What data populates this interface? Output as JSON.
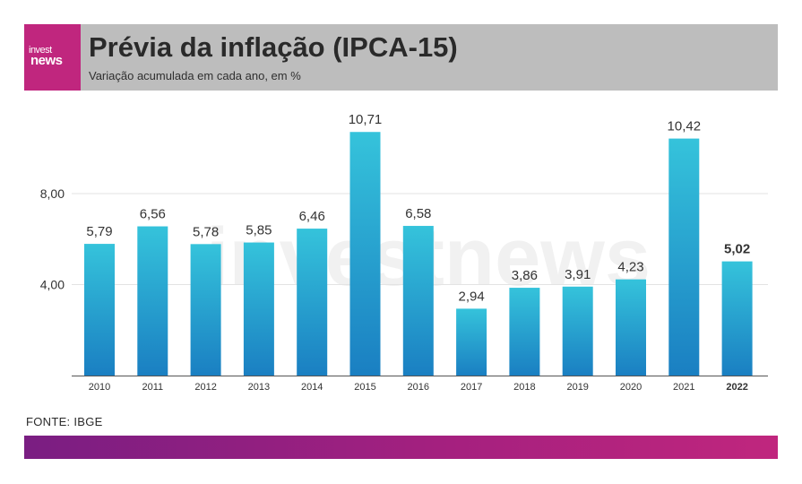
{
  "header": {
    "logo_line1": "invest",
    "logo_line2": "news",
    "title": "Prévia da inflação (IPCA-15)",
    "subtitle": "Variação acumulada em cada ano, em %"
  },
  "watermark": "investnews",
  "source": "FONTE: IBGE",
  "colors": {
    "header_bg": "#bdbdbd",
    "brand": "#c0267e",
    "bar_top": "#35c3db",
    "bar_bottom": "#1a7fc2",
    "gradient_start": "#7a1e82"
  },
  "chart_data": {
    "type": "bar",
    "categories": [
      "2010",
      "2011",
      "2012",
      "2013",
      "2014",
      "2015",
      "2016",
      "2017",
      "2018",
      "2019",
      "2020",
      "2021",
      "2022"
    ],
    "values": [
      5.79,
      6.56,
      5.78,
      5.85,
      6.46,
      10.71,
      6.58,
      2.94,
      3.86,
      3.91,
      4.23,
      10.42,
      5.02
    ],
    "value_labels": [
      "5,79",
      "6,56",
      "5,78",
      "5,85",
      "6,46",
      "10,71",
      "6,58",
      "2,94",
      "3,86",
      "3,91",
      "4,23",
      "10,42",
      "5,02"
    ],
    "highlight_category": "2022",
    "yticks": [
      4,
      8
    ],
    "ytick_labels": [
      "4,00",
      "8,00"
    ],
    "ylim": [
      0,
      12
    ],
    "grid": true,
    "title": "Prévia da inflação (IPCA-15)",
    "xlabel": "",
    "ylabel": ""
  }
}
